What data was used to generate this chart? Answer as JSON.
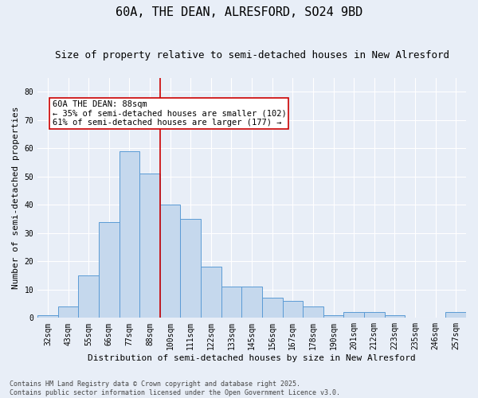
{
  "title": "60A, THE DEAN, ALRESFORD, SO24 9BD",
  "subtitle": "Size of property relative to semi-detached houses in New Alresford",
  "xlabel": "Distribution of semi-detached houses by size in New Alresford",
  "ylabel": "Number of semi-detached properties",
  "categories": [
    "32sqm",
    "43sqm",
    "55sqm",
    "66sqm",
    "77sqm",
    "88sqm",
    "100sqm",
    "111sqm",
    "122sqm",
    "133sqm",
    "145sqm",
    "156sqm",
    "167sqm",
    "178sqm",
    "190sqm",
    "201sqm",
    "212sqm",
    "223sqm",
    "235sqm",
    "246sqm",
    "257sqm"
  ],
  "values": [
    1,
    4,
    15,
    34,
    59,
    51,
    40,
    35,
    18,
    11,
    11,
    7,
    6,
    4,
    1,
    2,
    2,
    1,
    0,
    0,
    2
  ],
  "bar_color": "#c5d8ed",
  "bar_edge_color": "#5b9bd5",
  "vline_x": 5.5,
  "vline_color": "#cc0000",
  "annotation_text": "60A THE DEAN: 88sqm\n← 35% of semi-detached houses are smaller (102)\n61% of semi-detached houses are larger (177) →",
  "annotation_box_facecolor": "#ffffff",
  "annotation_box_edgecolor": "#cc0000",
  "ylim": [
    0,
    85
  ],
  "yticks": [
    0,
    10,
    20,
    30,
    40,
    50,
    60,
    70,
    80
  ],
  "background_color": "#e8eef7",
  "grid_color": "#ffffff",
  "footer": "Contains HM Land Registry data © Crown copyright and database right 2025.\nContains public sector information licensed under the Open Government Licence v3.0.",
  "title_fontsize": 11,
  "subtitle_fontsize": 9,
  "axis_label_fontsize": 8,
  "tick_fontsize": 7,
  "annotation_fontsize": 7.5,
  "footer_fontsize": 6
}
